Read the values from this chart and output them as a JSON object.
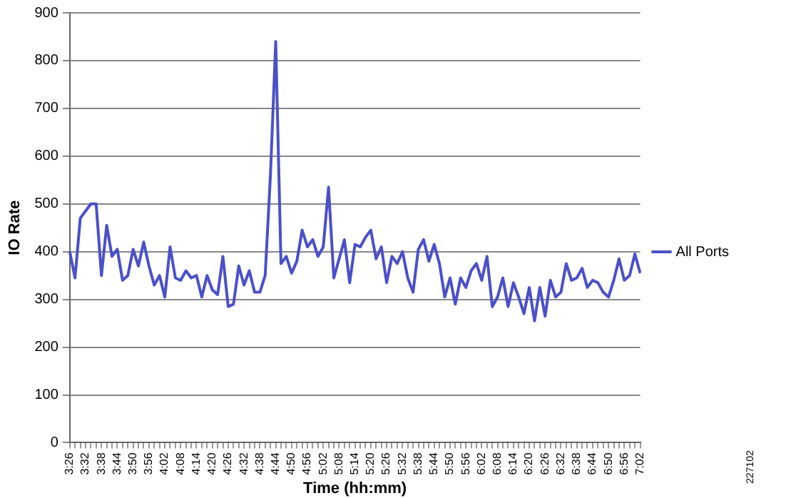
{
  "chart_data": {
    "type": "line",
    "xlabel": "Time (hh:mm)",
    "ylabel": "IO Rate",
    "categories": [
      "3:26",
      null,
      null,
      "3:32",
      null,
      null,
      "3:38",
      null,
      null,
      "3:44",
      null,
      null,
      "3:50",
      null,
      null,
      "3:56",
      null,
      null,
      "4:02",
      null,
      null,
      "4:08",
      null,
      null,
      "4:14",
      null,
      null,
      "4:20",
      null,
      null,
      "4:26",
      null,
      null,
      "4:32",
      null,
      null,
      "4:38",
      null,
      null,
      "4:44",
      null,
      null,
      "4:50",
      null,
      null,
      "4:56",
      null,
      null,
      "5:02",
      null,
      null,
      "5:08",
      null,
      null,
      "5:14",
      null,
      null,
      "5:20",
      null,
      null,
      "5:26",
      null,
      null,
      "5:32",
      null,
      null,
      "5:38",
      null,
      null,
      "5:44",
      null,
      null,
      "5:50",
      null,
      null,
      "5:56",
      null,
      null,
      "6:02",
      null,
      null,
      "6:08",
      null,
      null,
      "6:14",
      null,
      null,
      "6:20",
      null,
      null,
      "6:26",
      null,
      null,
      "6:32",
      null,
      null,
      "6:38",
      null,
      null,
      "6:44",
      null,
      null,
      "6:50",
      null,
      null,
      "6:56",
      null,
      null,
      "7:02"
    ],
    "series": [
      {
        "name": "All Ports",
        "color": "#4b50c8",
        "values": [
          400,
          345,
          470,
          485,
          500,
          500,
          350,
          455,
          390,
          405,
          340,
          350,
          405,
          370,
          420,
          370,
          330,
          350,
          305,
          410,
          345,
          340,
          360,
          345,
          350,
          305,
          350,
          320,
          310,
          390,
          285,
          290,
          370,
          330,
          360,
          315,
          315,
          350,
          560,
          840,
          375,
          390,
          355,
          380,
          445,
          410,
          425,
          390,
          410,
          535,
          345,
          385,
          425,
          335,
          415,
          410,
          430,
          445,
          385,
          410,
          335,
          390,
          375,
          400,
          345,
          315,
          405,
          425,
          380,
          415,
          375,
          305,
          345,
          290,
          345,
          325,
          360,
          375,
          340,
          390,
          285,
          305,
          345,
          285,
          335,
          305,
          270,
          325,
          255,
          325,
          265,
          340,
          305,
          315,
          375,
          340,
          345,
          365,
          325,
          340,
          335,
          315,
          305,
          340,
          385,
          340,
          350,
          395,
          355
        ]
      }
    ],
    "ylim": [
      0,
      900
    ],
    "yticks": [
      0,
      100,
      200,
      300,
      400,
      500,
      600,
      700,
      800,
      900
    ],
    "grid": "y",
    "legend": "right",
    "marker": "none",
    "line_style": "solid",
    "annotations": [
      "227102"
    ]
  }
}
